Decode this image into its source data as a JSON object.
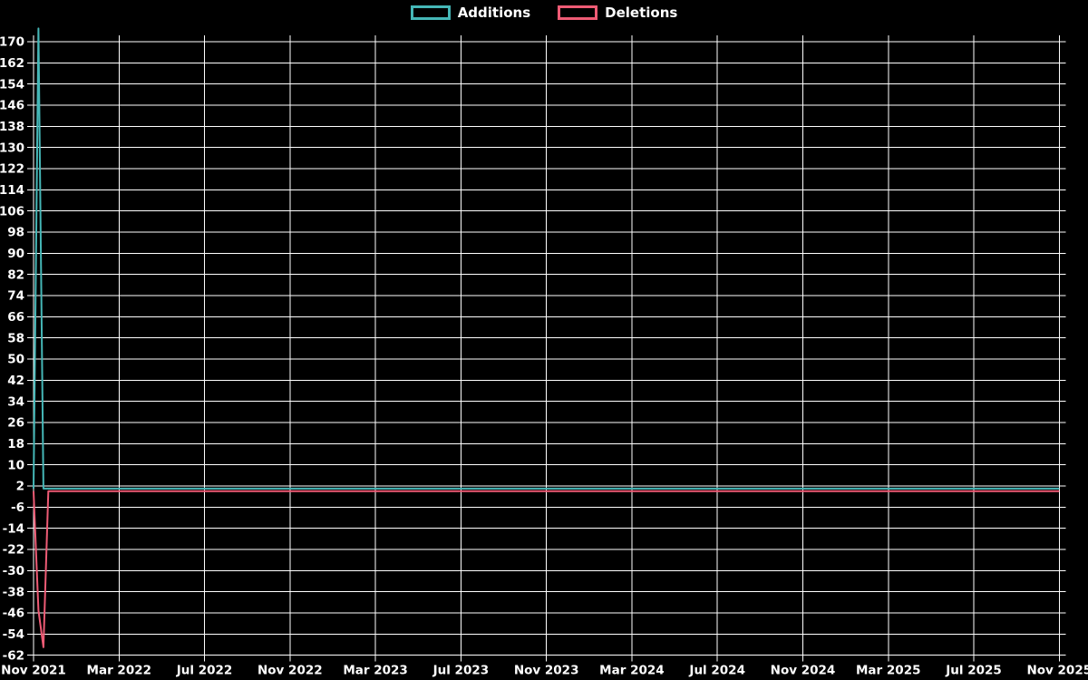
{
  "chart": {
    "background_color": "#000000",
    "grid_color": "#ffffff",
    "text_color": "#ffffff"
  },
  "chart_data": {
    "type": "line",
    "title": "",
    "xlabel": "",
    "ylabel": "",
    "x_range": {
      "start": "Nov 2021",
      "end": "Nov 2025"
    },
    "x_tick_labels": [
      "Nov 2021",
      "Mar 2022",
      "Jul 2022",
      "Nov 2022",
      "Mar 2023",
      "Jul 2023",
      "Nov 2023",
      "Mar 2024",
      "Jul 2024",
      "Nov 2024",
      "Mar 2025",
      "Jul 2025",
      "Nov 2025"
    ],
    "y_tick_labels": [
      "170",
      "162",
      "154",
      "146",
      "138",
      "130",
      "122",
      "114",
      "106",
      "98",
      "90",
      "82",
      "74",
      "66",
      "58",
      "50",
      "42",
      "34",
      "26",
      "18",
      "10",
      "2",
      "-6",
      "-14",
      "-22",
      "-30",
      "-38",
      "-46",
      "-54",
      "-62"
    ],
    "ylim": [
      -62,
      170
    ],
    "y_tick_step": 8,
    "grid": true,
    "legend_position": "top-center",
    "weeks_total": 209,
    "series": [
      {
        "name": "Additions",
        "color": "#45b7b7",
        "week_values_head": [
          1,
          175,
          1
        ],
        "flat_value": 1,
        "peak": 175
      },
      {
        "name": "Deletions",
        "color": "#ee5b75",
        "week_values_head": [
          0,
          -45,
          -59,
          0
        ],
        "flat_value": 0,
        "trough": -59
      }
    ]
  }
}
